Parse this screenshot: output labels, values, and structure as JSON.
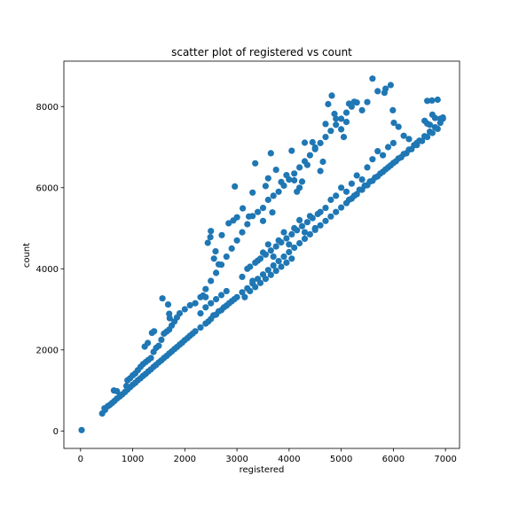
{
  "chart_data": {
    "type": "scatter",
    "title": "scatter plot of registered vs count",
    "xlabel": "registered",
    "ylabel": "count",
    "xlim": [
      -320,
      7270
    ],
    "ylim": [
      -430,
      9120
    ],
    "xticks": [
      0,
      1000,
      2000,
      3000,
      4000,
      5000,
      6000,
      7000
    ],
    "yticks": [
      0,
      2000,
      4000,
      6000,
      8000
    ],
    "grid": false,
    "marker_color": "#1f77b4",
    "series": [
      {
        "points": [
          [
            20,
            22
          ],
          [
            416,
            431
          ],
          [
            470,
            520
          ],
          [
            520,
            610
          ],
          [
            560,
            640
          ],
          [
            605,
            690
          ],
          [
            650,
            740
          ],
          [
            700,
            800
          ],
          [
            750,
            850
          ],
          [
            800,
            900
          ],
          [
            850,
            960
          ],
          [
            900,
            1020
          ],
          [
            950,
            1080
          ],
          [
            1000,
            1140
          ],
          [
            1050,
            1190
          ],
          [
            1100,
            1250
          ],
          [
            1150,
            1300
          ],
          [
            1200,
            1360
          ],
          [
            1250,
            1410
          ],
          [
            1300,
            1470
          ],
          [
            1350,
            1520
          ],
          [
            1400,
            1580
          ],
          [
            1450,
            1630
          ],
          [
            1500,
            1690
          ],
          [
            1550,
            1740
          ],
          [
            1600,
            1800
          ],
          [
            1650,
            1850
          ],
          [
            1700,
            1910
          ],
          [
            1750,
            1960
          ],
          [
            1800,
            2020
          ],
          [
            1850,
            2070
          ],
          [
            1900,
            2130
          ],
          [
            1950,
            2180
          ],
          [
            2000,
            2240
          ],
          [
            2050,
            2290
          ],
          [
            2100,
            2350
          ],
          [
            2150,
            2400
          ],
          [
            2200,
            2460
          ],
          [
            2300,
            2550
          ],
          [
            2400,
            2650
          ],
          [
            2500,
            2760
          ],
          [
            2600,
            2870
          ],
          [
            2700,
            2980
          ],
          [
            2800,
            3090
          ],
          [
            2900,
            3200
          ],
          [
            3000,
            3300
          ],
          [
            3100,
            3420
          ],
          [
            3200,
            3520
          ],
          [
            3300,
            3640
          ],
          [
            3400,
            3750
          ],
          [
            3500,
            3860
          ],
          [
            3600,
            3970
          ],
          [
            3700,
            4080
          ],
          [
            3800,
            4190
          ],
          [
            3900,
            4300
          ],
          [
            4000,
            4410
          ],
          [
            4100,
            4520
          ],
          [
            4200,
            4630
          ],
          [
            4300,
            4740
          ],
          [
            4400,
            4850
          ],
          [
            4500,
            4960
          ],
          [
            4600,
            5070
          ],
          [
            4700,
            5180
          ],
          [
            4800,
            5290
          ],
          [
            4900,
            5400
          ],
          [
            5000,
            5510
          ],
          [
            5100,
            5620
          ],
          [
            5200,
            5730
          ],
          [
            5300,
            5840
          ],
          [
            5400,
            5950
          ],
          [
            5500,
            6060
          ],
          [
            5600,
            6170
          ],
          [
            5700,
            6280
          ],
          [
            5800,
            6390
          ],
          [
            5900,
            6500
          ],
          [
            6000,
            6610
          ],
          [
            6100,
            6720
          ],
          [
            6200,
            6830
          ],
          [
            6300,
            6940
          ],
          [
            6400,
            7050
          ],
          [
            6500,
            7160
          ],
          [
            6600,
            7270
          ],
          [
            6700,
            7380
          ],
          [
            6800,
            7490
          ],
          [
            6900,
            7600
          ],
          [
            6950,
            7700
          ],
          [
            460,
            560
          ],
          [
            640,
            1000
          ],
          [
            700,
            980
          ],
          [
            880,
            1110
          ],
          [
            900,
            1250
          ],
          [
            950,
            1300
          ],
          [
            1000,
            1370
          ],
          [
            1050,
            1420
          ],
          [
            1100,
            1500
          ],
          [
            1150,
            1580
          ],
          [
            1200,
            1650
          ],
          [
            1250,
            1700
          ],
          [
            1300,
            1750
          ],
          [
            1350,
            1800
          ],
          [
            1400,
            1950
          ],
          [
            1450,
            2050
          ],
          [
            1500,
            2100
          ],
          [
            1550,
            2250
          ],
          [
            1600,
            2400
          ],
          [
            1650,
            2450
          ],
          [
            1700,
            2500
          ],
          [
            1750,
            2600
          ],
          [
            1800,
            2700
          ],
          [
            1850,
            2800
          ],
          [
            1900,
            2900
          ],
          [
            2000,
            3000
          ],
          [
            2100,
            3100
          ],
          [
            2200,
            3150
          ],
          [
            2300,
            3300
          ],
          [
            2400,
            3500
          ],
          [
            2500,
            3700
          ],
          [
            2600,
            3900
          ],
          [
            2700,
            4100
          ],
          [
            2800,
            4300
          ],
          [
            2900,
            4500
          ],
          [
            3000,
            4700
          ],
          [
            3100,
            4900
          ],
          [
            3200,
            5100
          ],
          [
            3300,
            5300
          ],
          [
            3400,
            5400
          ],
          [
            3500,
            5500
          ],
          [
            3600,
            5700
          ],
          [
            3700,
            5800
          ],
          [
            3800,
            5900
          ],
          [
            3900,
            6050
          ],
          [
            4000,
            6200
          ],
          [
            4100,
            6350
          ],
          [
            4200,
            6500
          ],
          [
            4300,
            6650
          ],
          [
            4400,
            6800
          ],
          [
            4500,
            6950
          ],
          [
            4600,
            7100
          ],
          [
            4700,
            7250
          ],
          [
            4800,
            7400
          ],
          [
            4900,
            7550
          ],
          [
            5000,
            7700
          ],
          [
            5100,
            7850
          ],
          [
            5200,
            8000
          ],
          [
            5300,
            8100
          ],
          [
            1570,
            3270
          ],
          [
            1680,
            3120
          ],
          [
            1700,
            2890
          ],
          [
            1710,
            2780
          ],
          [
            1370,
            2420
          ],
          [
            1410,
            2460
          ],
          [
            1290,
            2170
          ],
          [
            1230,
            2080
          ],
          [
            2350,
            3340
          ],
          [
            2400,
            3300
          ],
          [
            2440,
            4640
          ],
          [
            2490,
            4780
          ],
          [
            2500,
            4930
          ],
          [
            2560,
            4250
          ],
          [
            2590,
            4430
          ],
          [
            2650,
            4110
          ],
          [
            2710,
            4830
          ],
          [
            2840,
            5120
          ],
          [
            2930,
            5190
          ],
          [
            2960,
            6030
          ],
          [
            3000,
            5270
          ],
          [
            3110,
            5490
          ],
          [
            3230,
            5290
          ],
          [
            3300,
            5880
          ],
          [
            3350,
            6600
          ],
          [
            3500,
            5180
          ],
          [
            3550,
            6040
          ],
          [
            3600,
            6230
          ],
          [
            3650,
            6850
          ],
          [
            3680,
            5390
          ],
          [
            3750,
            6440
          ],
          [
            3850,
            6140
          ],
          [
            3950,
            6310
          ],
          [
            4050,
            6910
          ],
          [
            4100,
            6180
          ],
          [
            4150,
            5900
          ],
          [
            4200,
            6000
          ],
          [
            4250,
            6150
          ],
          [
            4300,
            7110
          ],
          [
            4350,
            6560
          ],
          [
            4450,
            7120
          ],
          [
            4500,
            6990
          ],
          [
            4600,
            6410
          ],
          [
            4650,
            6640
          ],
          [
            4700,
            7570
          ],
          [
            4750,
            8060
          ],
          [
            4820,
            8270
          ],
          [
            4870,
            7820
          ],
          [
            4900,
            7700
          ],
          [
            5000,
            7440
          ],
          [
            5050,
            7250
          ],
          [
            5100,
            7620
          ],
          [
            5150,
            8070
          ],
          [
            5250,
            8120
          ],
          [
            5400,
            7910
          ],
          [
            5500,
            8110
          ],
          [
            5600,
            8690
          ],
          [
            5700,
            8380
          ],
          [
            5830,
            8340
          ],
          [
            5850,
            8440
          ],
          [
            5950,
            8530
          ],
          [
            5990,
            7910
          ],
          [
            6010,
            7600
          ],
          [
            6100,
            7500
          ],
          [
            6650,
            8140
          ],
          [
            6740,
            8150
          ],
          [
            6850,
            8170
          ],
          [
            6450,
            7100
          ],
          [
            6300,
            7200
          ],
          [
            6200,
            7280
          ],
          [
            6700,
            7550
          ],
          [
            6800,
            7720
          ],
          [
            3100,
            3800
          ],
          [
            3200,
            4000
          ],
          [
            3300,
            3700
          ],
          [
            3400,
            4200
          ],
          [
            3500,
            4400
          ],
          [
            3600,
            4600
          ],
          [
            3700,
            4300
          ],
          [
            3800,
            4700
          ],
          [
            3900,
            4900
          ],
          [
            4000,
            4600
          ],
          [
            4100,
            5000
          ],
          [
            4200,
            5200
          ],
          [
            4300,
            4900
          ],
          [
            4400,
            5300
          ],
          [
            4500,
            5000
          ],
          [
            4600,
            5400
          ],
          [
            4700,
            5500
          ],
          [
            4800,
            5700
          ],
          [
            4900,
            5800
          ],
          [
            5000,
            6000
          ],
          [
            5100,
            5900
          ],
          [
            5200,
            6100
          ],
          [
            5300,
            6300
          ],
          [
            5400,
            6200
          ],
          [
            5500,
            6500
          ],
          [
            5600,
            6700
          ],
          [
            5700,
            6900
          ],
          [
            5800,
            6800
          ],
          [
            5900,
            7000
          ],
          [
            6000,
            7100
          ],
          [
            3150,
            3300
          ],
          [
            3250,
            3450
          ],
          [
            3350,
            3550
          ],
          [
            3450,
            3650
          ],
          [
            3550,
            3750
          ],
          [
            3650,
            3850
          ],
          [
            3750,
            3950
          ],
          [
            3850,
            4050
          ],
          [
            3950,
            4150
          ],
          [
            4050,
            4250
          ],
          [
            3250,
            4050
          ],
          [
            3350,
            4150
          ],
          [
            3450,
            4250
          ],
          [
            3550,
            4350
          ],
          [
            3650,
            4450
          ],
          [
            3750,
            4550
          ],
          [
            3850,
            4650
          ],
          [
            3950,
            4750
          ],
          [
            4050,
            4850
          ],
          [
            4150,
            4950
          ],
          [
            4250,
            5050
          ],
          [
            4350,
            5150
          ],
          [
            4450,
            5250
          ],
          [
            4550,
            5350
          ],
          [
            2450,
            2700
          ],
          [
            2550,
            2850
          ],
          [
            2650,
            2950
          ],
          [
            2750,
            3050
          ],
          [
            2850,
            3150
          ],
          [
            2950,
            3250
          ],
          [
            2300,
            2900
          ],
          [
            2400,
            3050
          ],
          [
            2500,
            3150
          ],
          [
            2600,
            3250
          ],
          [
            2700,
            3350
          ],
          [
            2800,
            3450
          ],
          [
            5150,
            5700
          ],
          [
            5250,
            5800
          ],
          [
            5350,
            5950
          ],
          [
            5450,
            6050
          ],
          [
            5550,
            6150
          ],
          [
            5650,
            6250
          ],
          [
            5750,
            6350
          ],
          [
            5850,
            6450
          ],
          [
            5950,
            6550
          ],
          [
            6050,
            6650
          ],
          [
            6150,
            6750
          ],
          [
            6250,
            6850
          ],
          [
            6350,
            6950
          ],
          [
            6450,
            7050
          ],
          [
            6550,
            7150
          ],
          [
            6650,
            7250
          ],
          [
            6750,
            7350
          ],
          [
            6850,
            7450
          ],
          [
            6600,
            7650
          ],
          [
            6650,
            7580
          ],
          [
            6750,
            7800
          ],
          [
            6900,
            7700
          ],
          [
            6950,
            7730
          ]
        ]
      }
    ]
  }
}
